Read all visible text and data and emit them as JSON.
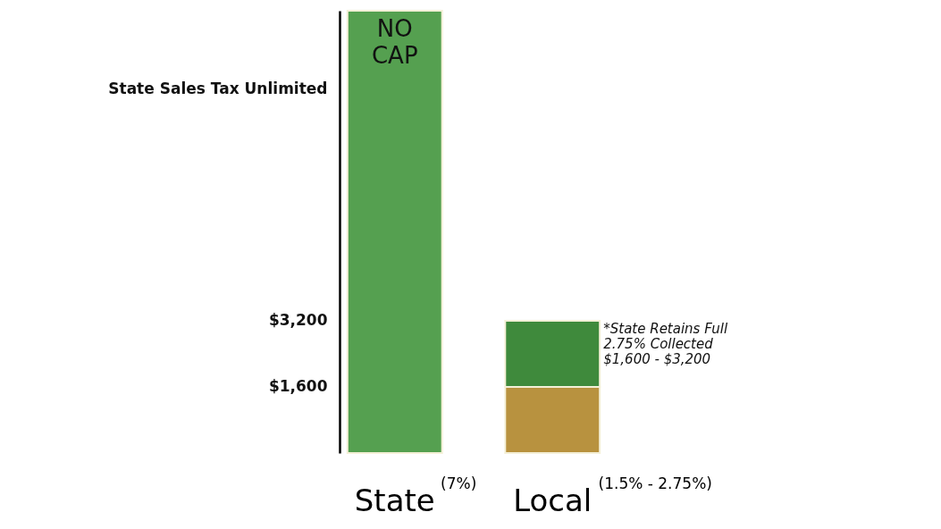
{
  "chart_data": {
    "type": "bar",
    "stacked": true,
    "categories": [
      "State$^{(7%)}$",
      "Local$^{(1.5% - 2.75%)}$"
    ],
    "series": [
      {
        "colors": [
          "#55a050",
          "#b8923f"
        ],
        "values": [
          10700,
          1600
        ]
      },
      {
        "color": "#3f8a3c",
        "values": [
          null,
          1600
        ]
      }
    ],
    "ylim": [
      0,
      10700
    ],
    "yticks": [
      {
        "value": 1600,
        "label": "$1,600"
      },
      {
        "value": 3200,
        "label": "$3,200"
      },
      {
        "value": 8800,
        "label": "State Sales Tax Unlimited"
      }
    ],
    "annotations": [
      "NO CAP",
      "*State Retains Full\n2.75% Collected\n$1,600 - $3,200"
    ],
    "grid": false
  }
}
